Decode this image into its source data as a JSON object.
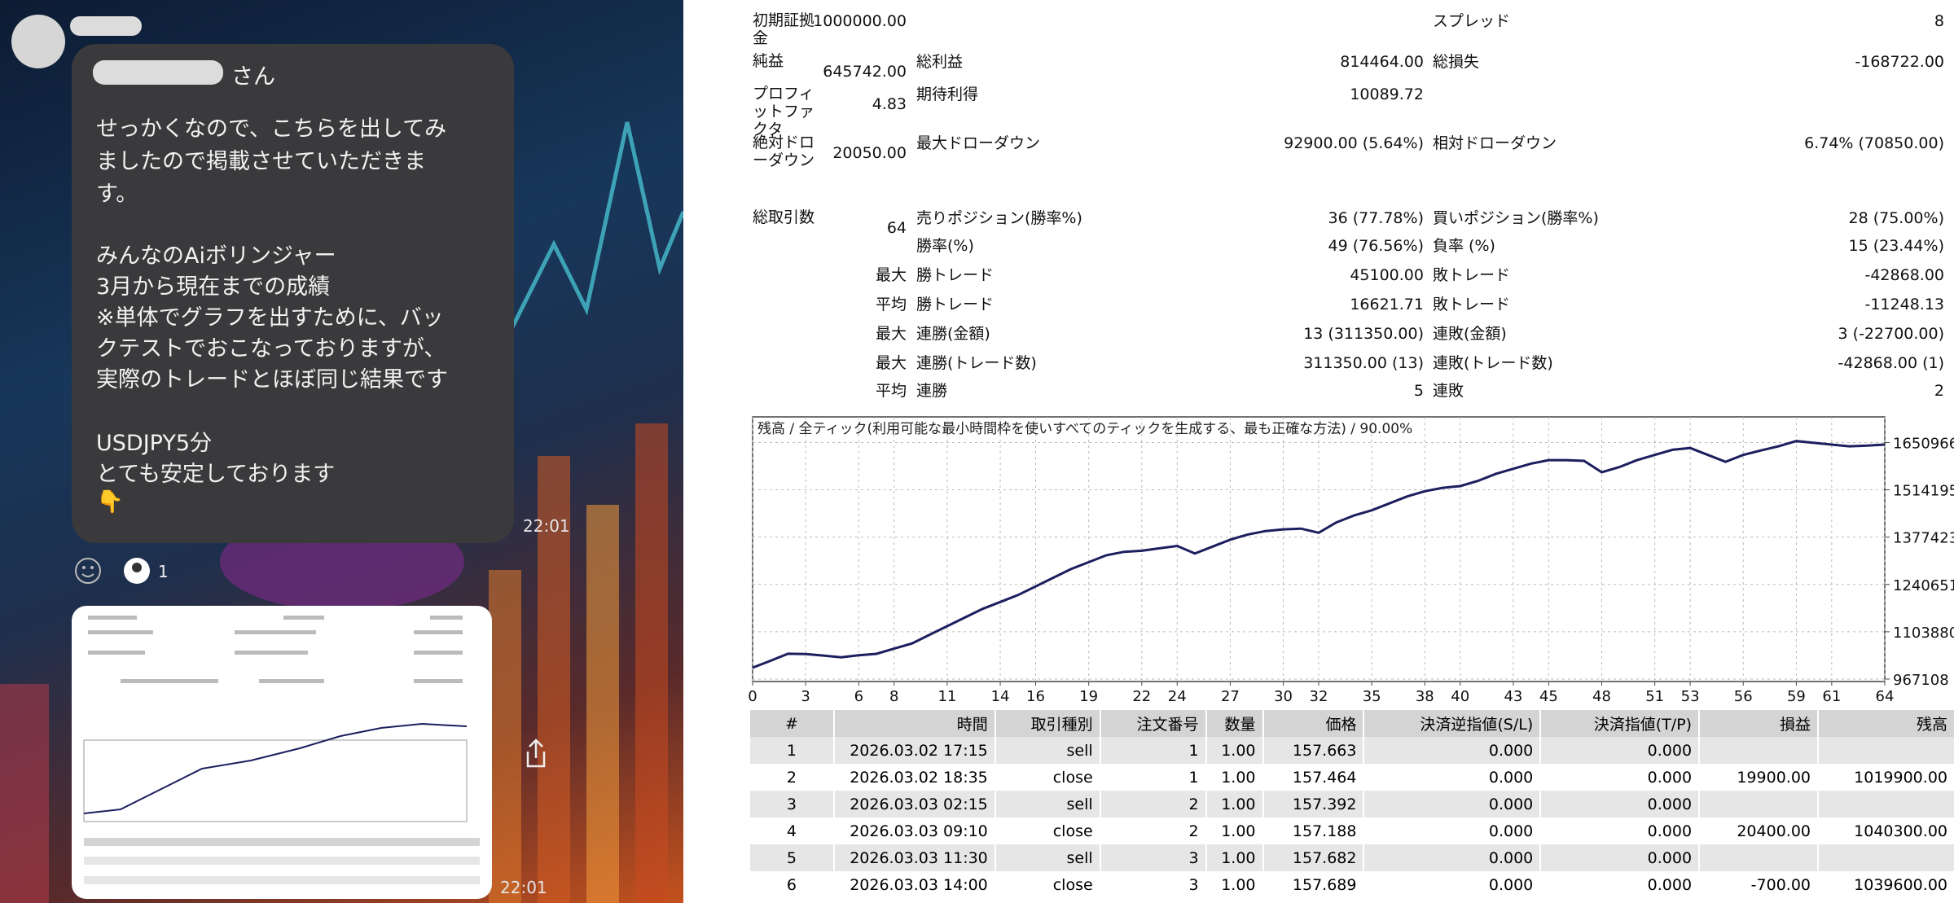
{
  "chat": {
    "sender_suffix": "さん",
    "message": [
      "せっかくなので、こちらを出してみ",
      "ましたので掲載させていただきま",
      "す。",
      "みんなのAiボリンジャー",
      "3月から現在までの成績",
      "※単体でグラフを出すために、バッ",
      "クテストでおこなっておりますが、",
      "実際のトレードとほぼ同じ結果です",
      "USDJPY5分",
      "とても安定しております",
      "👇"
    ],
    "message_time": "22:01",
    "reaction_count": 1,
    "image_time": "22:01"
  },
  "report": {
    "summary": [
      [
        "初期証拠金",
        "1000000.00",
        null,
        null,
        "スプレッド",
        "8"
      ],
      [
        "純益",
        "645742.00",
        "総利益",
        "814464.00",
        "総損失",
        "-168722.00"
      ],
      [
        "プロフィットファクタ",
        "4.83",
        "期待利得",
        "10089.72",
        null,
        null
      ],
      [
        "絶対ドローダウン",
        "20050.00",
        "最大ドローダウン",
        "92900.00 (5.64%)",
        "相対ドローダウン",
        "6.74% (70850.00)"
      ],
      [
        "総取引数",
        "64",
        "売りポジション(勝率%)",
        "36 (77.78%)",
        "買いポジション(勝率%)",
        "28 (75.00%)"
      ],
      [
        null,
        null,
        "勝率(%)",
        "49 (76.56%)",
        "負率 (%)",
        "15 (23.44%)"
      ],
      [
        null,
        "最大",
        "勝トレード",
        "45100.00",
        "敗トレード",
        "-42868.00"
      ],
      [
        null,
        "平均",
        "勝トレード",
        "16621.71",
        "敗トレード",
        "-11248.13"
      ],
      [
        null,
        "最大",
        "連勝(金額)",
        "13 (311350.00)",
        "連敗(金額)",
        "3 (-22700.00)"
      ],
      [
        null,
        "最大",
        "連勝(トレード数)",
        "311350.00 (13)",
        "連敗(トレード数)",
        "-42868.00 (1)"
      ],
      [
        null,
        "平均",
        "連勝",
        "5",
        "連敗",
        "2"
      ]
    ],
    "trades": {
      "header": [
        "#",
        "時間",
        "取引種別",
        "注文番号",
        "数量",
        "価格",
        "決済逆指値(S/L)",
        "決済指値(T/P)",
        "損益",
        "残高"
      ],
      "rows": [
        [
          "1",
          "2026.03.02 17:15",
          "sell",
          "1",
          "1.00",
          "157.663",
          "0.000",
          "0.000",
          null,
          null
        ],
        [
          "2",
          "2026.03.02 18:35",
          "close",
          "1",
          "1.00",
          "157.464",
          "0.000",
          "0.000",
          "19900.00",
          "1019900.00"
        ],
        [
          "3",
          "2026.03.03 02:15",
          "sell",
          "2",
          "1.00",
          "157.392",
          "0.000",
          "0.000",
          null,
          null
        ],
        [
          "4",
          "2026.03.03 09:10",
          "close",
          "2",
          "1.00",
          "157.188",
          "0.000",
          "0.000",
          "20400.00",
          "1040300.00"
        ],
        [
          "5",
          "2026.03.03 11:30",
          "sell",
          "3",
          "1.00",
          "157.682",
          "0.000",
          "0.000",
          null,
          null
        ],
        [
          "6",
          "2026.03.03 14:00",
          "close",
          "3",
          "1.00",
          "157.689",
          "0.000",
          "0.000",
          "-700.00",
          "1039600.00"
        ]
      ]
    }
  },
  "chart_data": {
    "type": "line",
    "title": "残高 / 全ティック(利用可能な最小時間枠を使いすべてのティックを生成する、最も正確な方法) / 90.00%",
    "x": [
      0,
      1,
      2,
      3,
      4,
      5,
      6,
      7,
      8,
      9,
      10,
      11,
      12,
      13,
      14,
      15,
      16,
      17,
      18,
      19,
      20,
      21,
      22,
      23,
      24,
      25,
      26,
      27,
      28,
      29,
      30,
      31,
      32,
      33,
      34,
      35,
      36,
      37,
      38,
      39,
      40,
      41,
      42,
      43,
      44,
      45,
      46,
      47,
      48,
      49,
      50,
      51,
      52,
      53,
      54,
      55,
      56,
      57,
      58,
      59,
      60,
      61,
      62,
      63,
      64
    ],
    "series": [
      {
        "color": "#1c1f5e",
        "values": [
          1000000,
          1019900,
          1040300,
          1039600,
          1035000,
          1030000,
          1036000,
          1040000,
          1055000,
          1070000,
          1095000,
          1120000,
          1145000,
          1170000,
          1190000,
          1210000,
          1235000,
          1260000,
          1285000,
          1305000,
          1325000,
          1335000,
          1338000,
          1345000,
          1352000,
          1330000,
          1350000,
          1370000,
          1385000,
          1395000,
          1400000,
          1402000,
          1390000,
          1420000,
          1440000,
          1455000,
          1475000,
          1495000,
          1510000,
          1520000,
          1525000,
          1540000,
          1560000,
          1575000,
          1590000,
          1600000,
          1600000,
          1598000,
          1565000,
          1580000,
          1600000,
          1615000,
          1630000,
          1635000,
          1615000,
          1595000,
          1615000,
          1628000,
          1640000,
          1655000,
          1650000,
          1645000,
          1640000,
          1642000,
          1645000
        ]
      }
    ],
    "xlim": [
      0,
      64
    ],
    "xticks": [
      0,
      3,
      6,
      8,
      11,
      14,
      16,
      19,
      22,
      24,
      27,
      30,
      32,
      35,
      38,
      40,
      43,
      45,
      48,
      51,
      53,
      56,
      59,
      61,
      64
    ],
    "ylim": [
      960000,
      1725000
    ],
    "yticks": [
      967108,
      1103880,
      1240651,
      1377423,
      1514195,
      1650966
    ],
    "grid": true
  }
}
